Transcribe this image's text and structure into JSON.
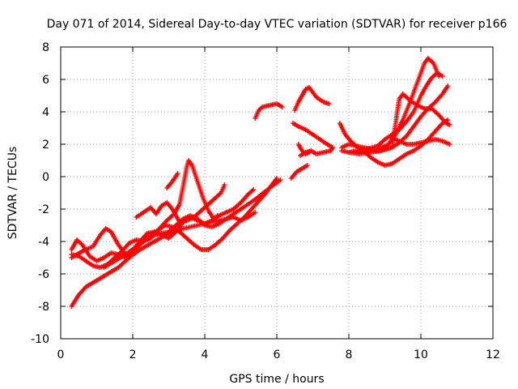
{
  "chart_data": {
    "type": "scatter",
    "title": "Day 071 of 2014, Sidereal Day-to-day VTEC variation (SDTVAR) for receiver p166",
    "xlabel": "GPS time / hours",
    "ylabel": "SDTVAR / TECUs",
    "xlim": [
      0,
      12
    ],
    "ylim": [
      -10,
      8
    ],
    "x_ticks": [
      0,
      2,
      4,
      6,
      8,
      10,
      12
    ],
    "y_ticks": [
      -10,
      -8,
      -6,
      -4,
      -2,
      0,
      2,
      4,
      6,
      8
    ],
    "grid": true,
    "legend": "none",
    "marker": "plus",
    "color": "#ff0000",
    "series": [
      {
        "points": [
          [
            0.3,
            -8.0
          ],
          [
            0.5,
            -7.3
          ],
          [
            0.7,
            -6.8
          ],
          [
            1.0,
            -6.4
          ],
          [
            1.3,
            -6.0
          ],
          [
            1.6,
            -5.6
          ],
          [
            1.9,
            -5.0
          ],
          [
            2.2,
            -4.5
          ],
          [
            2.6,
            -4.0
          ],
          [
            3.0,
            -3.5
          ],
          [
            3.4,
            -3.2
          ],
          [
            3.8,
            -3.0
          ],
          [
            4.2,
            -2.8
          ],
          [
            4.6,
            -2.6
          ],
          [
            5.0,
            -2.0
          ],
          [
            5.4,
            -1.4
          ],
          [
            5.8,
            -0.7
          ],
          [
            6.1,
            -0.2
          ]
        ]
      },
      {
        "points": [
          [
            0.3,
            -4.5
          ],
          [
            0.45,
            -3.9
          ],
          [
            0.6,
            -4.2
          ],
          [
            0.8,
            -4.9
          ],
          [
            1.0,
            -5.2
          ],
          [
            1.2,
            -5.0
          ],
          [
            1.4,
            -4.7
          ],
          [
            1.6,
            -4.8
          ],
          [
            1.8,
            -5.0
          ],
          [
            2.0,
            -4.6
          ],
          [
            2.2,
            -4.2
          ],
          [
            2.4,
            -3.8
          ],
          [
            2.6,
            -3.6
          ],
          [
            2.8,
            -3.5
          ],
          [
            3.0,
            -3.4
          ],
          [
            3.2,
            -3.0
          ],
          [
            3.4,
            -2.6
          ],
          [
            3.6,
            -2.4
          ],
          [
            3.8,
            -2.6
          ],
          [
            4.0,
            -3.0
          ],
          [
            4.2,
            -3.1
          ],
          [
            4.4,
            -2.9
          ],
          [
            4.6,
            -2.6
          ],
          [
            4.8,
            -2.5
          ],
          [
            5.0,
            -2.7
          ],
          [
            5.2,
            -2.5
          ],
          [
            5.4,
            -2.2
          ]
        ]
      },
      {
        "points": [
          [
            0.3,
            -5.0
          ],
          [
            0.6,
            -4.6
          ],
          [
            0.9,
            -4.3
          ],
          [
            1.1,
            -3.6
          ],
          [
            1.25,
            -3.2
          ],
          [
            1.4,
            -3.4
          ],
          [
            1.6,
            -4.2
          ],
          [
            1.8,
            -4.8
          ],
          [
            2.0,
            -4.5
          ],
          [
            2.2,
            -4.0
          ],
          [
            2.4,
            -3.5
          ],
          [
            2.6,
            -3.4
          ],
          [
            2.8,
            -3.6
          ],
          [
            3.0,
            -3.8
          ],
          [
            3.2,
            -3.4
          ],
          [
            3.4,
            -2.8
          ],
          [
            3.6,
            -2.5
          ],
          [
            3.8,
            -2.7
          ],
          [
            4.0,
            -2.9
          ],
          [
            4.2,
            -2.7
          ],
          [
            4.4,
            -2.4
          ],
          [
            4.6,
            -2.2
          ],
          [
            4.8,
            -2.0
          ],
          [
            5.0,
            -1.6
          ],
          [
            5.2,
            -1.1
          ],
          [
            5.35,
            -0.8
          ]
        ]
      },
      {
        "points": [
          [
            0.3,
            -4.8
          ],
          [
            0.5,
            -4.9
          ],
          [
            0.7,
            -5.2
          ],
          [
            0.9,
            -5.5
          ],
          [
            1.1,
            -5.6
          ],
          [
            1.3,
            -5.4
          ],
          [
            1.5,
            -5.0
          ],
          [
            1.7,
            -4.6
          ],
          [
            1.9,
            -4.1
          ],
          [
            2.1,
            -3.9
          ],
          [
            2.3,
            -4.0
          ],
          [
            2.5,
            -3.8
          ],
          [
            2.7,
            -3.3
          ],
          [
            2.9,
            -3.0
          ],
          [
            3.1,
            -3.1
          ],
          [
            3.3,
            -3.4
          ],
          [
            3.5,
            -3.8
          ],
          [
            3.7,
            -4.2
          ],
          [
            3.9,
            -4.5
          ],
          [
            4.1,
            -4.5
          ],
          [
            4.3,
            -4.2
          ],
          [
            4.5,
            -3.8
          ],
          [
            4.7,
            -3.3
          ],
          [
            4.9,
            -2.9
          ],
          [
            5.1,
            -2.5
          ],
          [
            5.3,
            -2.0
          ],
          [
            5.5,
            -1.5
          ],
          [
            5.7,
            -1.0
          ],
          [
            5.9,
            -0.4
          ],
          [
            6.0,
            -0.1
          ]
        ]
      },
      {
        "points": [
          [
            1.2,
            -5.6
          ],
          [
            1.5,
            -5.2
          ],
          [
            1.8,
            -4.8
          ],
          [
            2.1,
            -4.3
          ],
          [
            2.4,
            -3.8
          ],
          [
            2.7,
            -3.3
          ],
          [
            2.95,
            -2.7
          ],
          [
            3.15,
            -2.3
          ],
          [
            3.3,
            -1.7
          ],
          [
            3.4,
            -0.6
          ],
          [
            3.5,
            0.6
          ],
          [
            3.55,
            1.0
          ],
          [
            3.65,
            0.7
          ],
          [
            3.8,
            -0.3
          ],
          [
            3.95,
            -1.3
          ],
          [
            4.1,
            -2.1
          ],
          [
            4.25,
            -2.6
          ],
          [
            4.35,
            -2.4
          ]
        ]
      },
      {
        "points": [
          [
            2.1,
            -2.5
          ],
          [
            2.3,
            -2.2
          ],
          [
            2.5,
            -1.9
          ],
          [
            2.65,
            -2.3
          ],
          [
            2.8,
            -1.8
          ],
          [
            2.95,
            -1.6
          ],
          [
            3.1,
            -2.0
          ],
          [
            3.3,
            -2.8
          ],
          [
            3.5,
            -2.7
          ],
          [
            3.7,
            -2.5
          ],
          [
            3.9,
            -2.1
          ],
          [
            4.1,
            -1.7
          ],
          [
            4.3,
            -1.3
          ],
          [
            4.45,
            -1.0
          ],
          [
            4.55,
            -0.5
          ]
        ]
      },
      {
        "points": [
          [
            2.95,
            -0.7
          ],
          [
            3.1,
            -0.3
          ],
          [
            3.25,
            0.2
          ]
        ]
      },
      {
        "points": [
          [
            5.4,
            3.6
          ],
          [
            5.5,
            4.1
          ],
          [
            5.6,
            4.3
          ],
          [
            5.8,
            4.4
          ],
          [
            6.0,
            4.5
          ],
          [
            6.15,
            4.3
          ]
        ]
      },
      {
        "points": [
          [
            6.4,
            -0.1
          ],
          [
            6.55,
            0.3
          ],
          [
            6.7,
            0.5
          ],
          [
            6.85,
            0.7
          ]
        ]
      },
      {
        "points": [
          [
            6.45,
            3.3
          ],
          [
            6.6,
            3.1
          ],
          [
            6.8,
            2.9
          ],
          [
            7.0,
            2.6
          ],
          [
            7.2,
            2.3
          ],
          [
            7.4,
            2.0
          ],
          [
            7.55,
            1.8
          ],
          [
            7.5,
            1.6
          ],
          [
            7.3,
            1.5
          ],
          [
            7.1,
            1.4
          ],
          [
            6.95,
            1.6
          ],
          [
            6.8,
            1.5
          ],
          [
            6.65,
            1.3
          ]
        ]
      },
      {
        "points": [
          [
            6.5,
            4.1
          ],
          [
            6.6,
            4.6
          ],
          [
            6.7,
            5.0
          ],
          [
            6.8,
            5.4
          ],
          [
            6.9,
            5.5
          ],
          [
            7.0,
            5.2
          ],
          [
            7.1,
            4.9
          ],
          [
            7.3,
            4.6
          ],
          [
            7.45,
            4.5
          ]
        ]
      },
      {
        "points": [
          [
            6.6,
            2.0
          ],
          [
            6.7,
            1.6
          ],
          [
            6.8,
            1.4
          ],
          [
            6.9,
            1.5
          ]
        ]
      },
      {
        "points": [
          [
            7.75,
            3.3
          ],
          [
            7.9,
            2.6
          ],
          [
            8.05,
            2.2
          ],
          [
            8.2,
            1.9
          ],
          [
            8.4,
            1.6
          ],
          [
            8.6,
            1.2
          ],
          [
            8.8,
            0.9
          ],
          [
            9.0,
            0.7
          ],
          [
            9.2,
            0.8
          ],
          [
            9.4,
            1.1
          ],
          [
            9.6,
            1.4
          ],
          [
            9.8,
            1.6
          ],
          [
            10.0,
            1.9
          ],
          [
            10.2,
            2.3
          ],
          [
            10.4,
            2.8
          ],
          [
            10.6,
            3.3
          ],
          [
            10.75,
            3.5
          ]
        ]
      },
      {
        "points": [
          [
            7.8,
            1.8
          ],
          [
            8.0,
            2.0
          ],
          [
            8.2,
            1.9
          ],
          [
            8.4,
            1.8
          ],
          [
            8.6,
            1.7
          ],
          [
            8.8,
            1.6
          ],
          [
            9.0,
            1.7
          ],
          [
            9.2,
            1.8
          ],
          [
            9.4,
            2.1
          ],
          [
            9.6,
            2.5
          ],
          [
            9.8,
            3.1
          ],
          [
            10.0,
            3.7
          ],
          [
            10.2,
            4.2
          ],
          [
            10.4,
            4.6
          ],
          [
            10.6,
            5.1
          ],
          [
            10.75,
            5.6
          ]
        ]
      },
      {
        "points": [
          [
            7.8,
            1.6
          ],
          [
            8.0,
            1.5
          ],
          [
            8.2,
            1.6
          ],
          [
            8.5,
            1.7
          ],
          [
            8.8,
            1.9
          ],
          [
            9.0,
            2.3
          ],
          [
            9.2,
            2.6
          ],
          [
            9.4,
            2.9
          ],
          [
            9.6,
            3.4
          ],
          [
            9.8,
            4.0
          ],
          [
            10.0,
            5.0
          ],
          [
            10.15,
            5.6
          ],
          [
            10.3,
            6.1
          ],
          [
            10.45,
            6.4
          ],
          [
            10.6,
            6.2
          ]
        ]
      },
      {
        "points": [
          [
            8.2,
            1.5
          ],
          [
            8.5,
            1.6
          ],
          [
            8.8,
            1.7
          ],
          [
            9.1,
            2.0
          ],
          [
            9.3,
            2.6
          ],
          [
            9.5,
            3.5
          ],
          [
            9.7,
            4.6
          ],
          [
            9.85,
            5.5
          ],
          [
            10.0,
            6.4
          ],
          [
            10.1,
            7.0
          ],
          [
            10.2,
            7.3
          ],
          [
            10.35,
            7.0
          ],
          [
            10.5,
            6.2
          ]
        ]
      },
      {
        "points": [
          [
            8.0,
            1.5
          ],
          [
            8.3,
            1.4
          ],
          [
            8.6,
            1.5
          ],
          [
            8.9,
            1.6
          ],
          [
            9.2,
            1.8
          ],
          [
            9.4,
            4.8
          ],
          [
            9.5,
            5.1
          ],
          [
            9.7,
            4.7
          ],
          [
            9.9,
            4.4
          ],
          [
            10.1,
            4.2
          ],
          [
            10.3,
            4.2
          ],
          [
            10.5,
            3.8
          ],
          [
            10.7,
            3.3
          ],
          [
            10.8,
            3.2
          ]
        ]
      },
      {
        "points": [
          [
            9.2,
            2.4
          ],
          [
            9.4,
            2.2
          ],
          [
            9.6,
            2.0
          ],
          [
            9.8,
            2.0
          ],
          [
            10.0,
            2.1
          ],
          [
            10.2,
            2.2
          ],
          [
            10.4,
            2.3
          ],
          [
            10.6,
            2.2
          ],
          [
            10.8,
            2.0
          ]
        ]
      }
    ]
  }
}
